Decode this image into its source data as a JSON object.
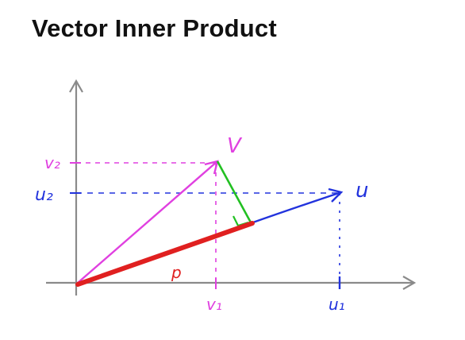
{
  "title": "Vector Inner Product",
  "labels": {
    "v_vector": "V",
    "u_vector": "u",
    "v2_tick": "v₂",
    "u2_tick": "u₂",
    "v1_tick": "v₁",
    "u1_tick": "u₁",
    "projection": "p"
  },
  "colors": {
    "axes": "#8a8a8a",
    "vector_v": "#e040e0",
    "vector_u": "#2233dd",
    "projection_p": "#e02020",
    "perpendicular": "#22c022",
    "right_angle_marker": "#22c022",
    "guide_v": "#e040e0",
    "guide_u": "#2233dd"
  }
}
